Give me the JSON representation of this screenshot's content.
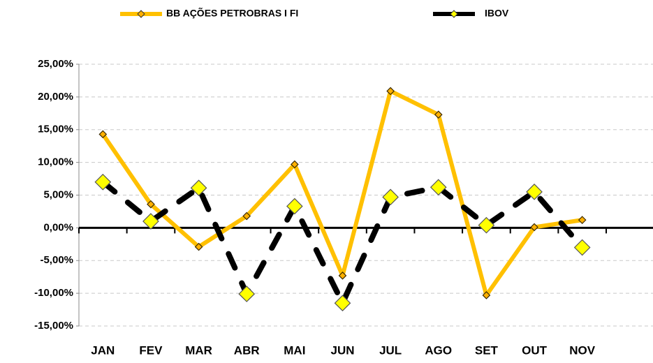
{
  "chart_data": {
    "type": "line",
    "categories": [
      "JAN",
      "FEV",
      "MAR",
      "ABR",
      "MAI",
      "JUN",
      "JUL",
      "AGO",
      "SET",
      "OUT",
      "NOV"
    ],
    "series": [
      {
        "name": "BB AÇÕES PETROBRAS I FI",
        "color": "#ffc000",
        "values": [
          14.3,
          3.6,
          -2.9,
          1.8,
          9.7,
          -7.3,
          20.9,
          17.3,
          -10.3,
          0.1,
          1.2
        ]
      },
      {
        "name": "IBOV",
        "color": "#000000",
        "values": [
          7.0,
          1.0,
          6.1,
          -10.1,
          3.3,
          -11.5,
          4.7,
          6.2,
          0.4,
          5.5,
          -3.0
        ]
      }
    ],
    "ylim": [
      -15,
      25
    ],
    "yticks": [
      {
        "value": -15,
        "label": "-15,00%"
      },
      {
        "value": -10,
        "label": "-10,00%"
      },
      {
        "value": -5,
        "label": "-5,00%"
      },
      {
        "value": 0,
        "label": "0,00%"
      },
      {
        "value": 5,
        "label": "5,00%"
      },
      {
        "value": 10,
        "label": "10,00%"
      },
      {
        "value": 15,
        "label": "15,00%"
      },
      {
        "value": 20,
        "label": "20,00%"
      },
      {
        "value": 25,
        "label": "25,00%"
      }
    ],
    "grid": true,
    "legend": "top"
  }
}
